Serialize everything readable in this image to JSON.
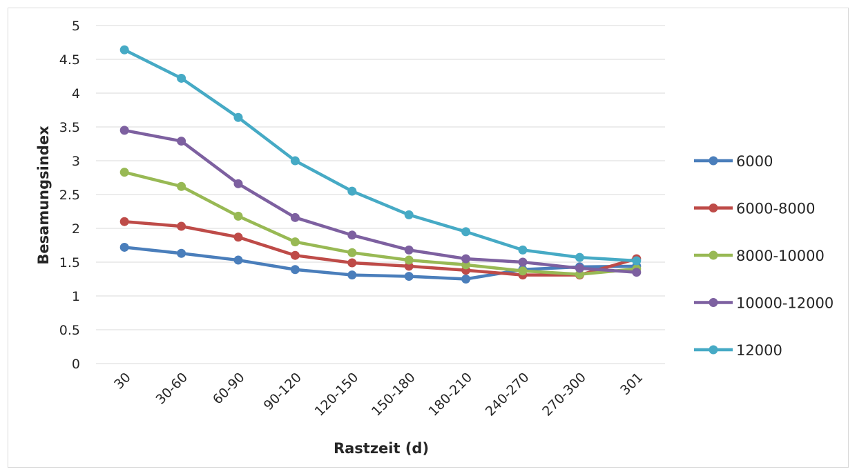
{
  "chart_data": {
    "type": "line",
    "xlabel": "Rastzeit (d)",
    "ylabel": "Besamungsindex",
    "ylim": [
      0,
      5
    ],
    "yticks": [
      "0",
      "0.5",
      "1",
      "1.5",
      "2",
      "2.5",
      "3",
      "3.5",
      "4",
      "4.5",
      "5"
    ],
    "categories": [
      "30",
      "30-60",
      "60-90",
      "90-120",
      "120-150",
      "150-180",
      "180-210",
      "240-270",
      "270-300",
      "301"
    ],
    "grid": true,
    "legend_position": "right",
    "series": [
      {
        "name": "6000",
        "color": "#4a7ebb",
        "values": [
          1.72,
          1.63,
          1.53,
          1.39,
          1.31,
          1.29,
          1.25,
          1.39,
          1.43,
          1.44
        ]
      },
      {
        "name": "6000-8000",
        "color": "#be4b48",
        "values": [
          2.1,
          2.03,
          1.87,
          1.6,
          1.49,
          1.44,
          1.38,
          1.31,
          1.31,
          1.55
        ]
      },
      {
        "name": "8000-10000",
        "color": "#98b954",
        "values": [
          2.83,
          2.62,
          2.18,
          1.8,
          1.64,
          1.53,
          1.46,
          1.37,
          1.32,
          1.4
        ]
      },
      {
        "name": "10000-12000",
        "color": "#7d60a0",
        "values": [
          3.45,
          3.29,
          2.66,
          2.16,
          1.9,
          1.68,
          1.55,
          1.5,
          1.41,
          1.35
        ]
      },
      {
        "name": "12000",
        "color": "#46aac5",
        "values": [
          4.64,
          4.22,
          3.64,
          3.0,
          2.55,
          2.2,
          1.95,
          1.68,
          1.57,
          1.52
        ]
      }
    ]
  }
}
